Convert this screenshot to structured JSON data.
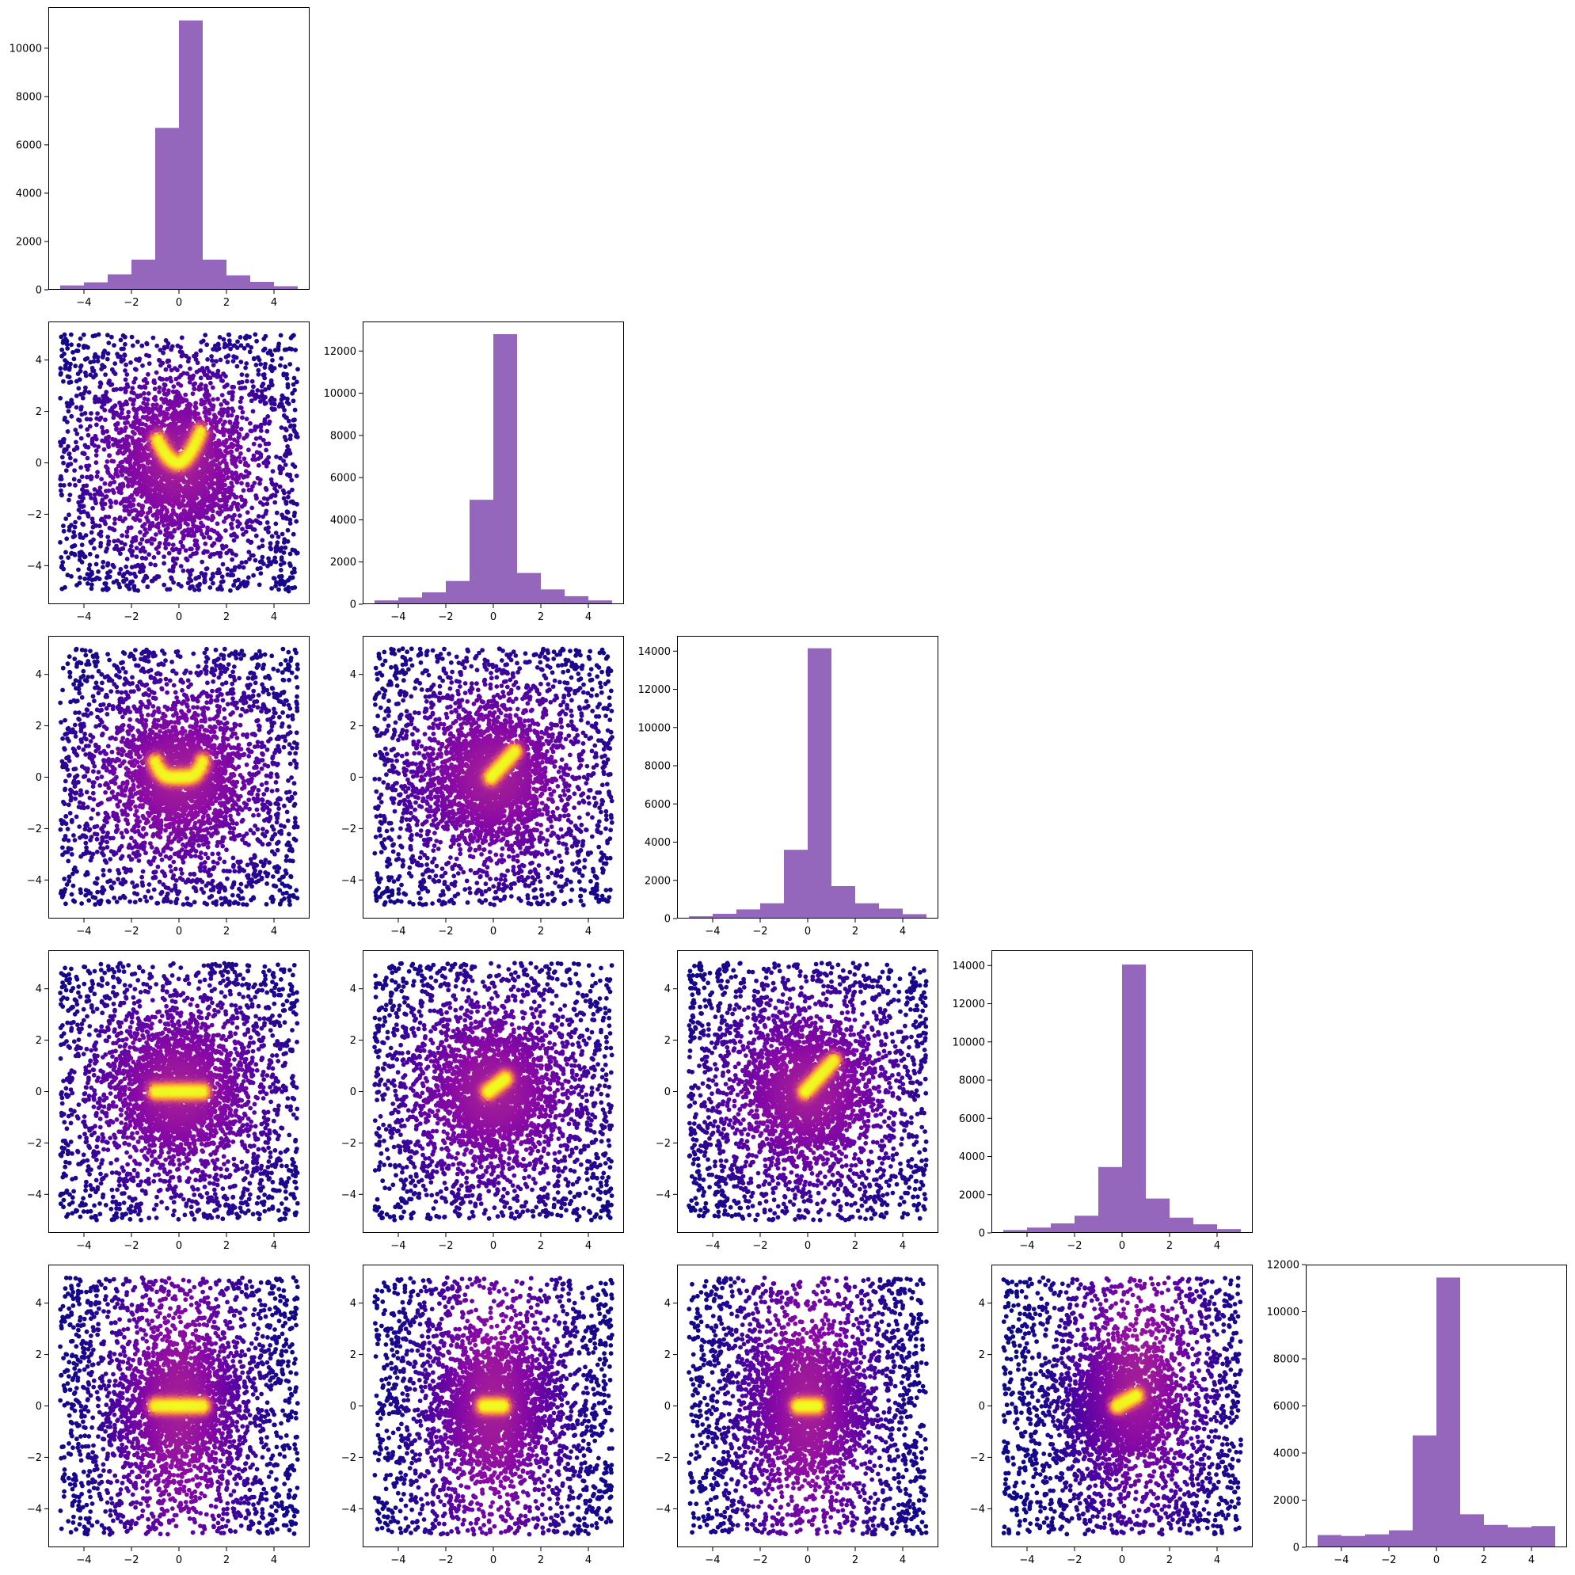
{
  "colors": {
    "hist_fill": "#9467bd",
    "scatter_colormap": "plasma",
    "background": "#ffffff",
    "axes": "#000000"
  },
  "layout_grid": {
    "rows": 5,
    "cols": 5,
    "lower_triangle": true
  },
  "chart_data": [
    {
      "id": "hist-0",
      "type": "bar",
      "row": 0,
      "col": 0,
      "bin_edges": [
        -5,
        -4,
        -3,
        -2,
        -1,
        0,
        1,
        2,
        3,
        4,
        5
      ],
      "values": [
        180,
        310,
        640,
        1250,
        6700,
        11150,
        1250,
        600,
        330,
        150
      ],
      "xlim": [
        -5.5,
        5.5
      ],
      "ylim": [
        0,
        11700
      ],
      "xticks": [
        -4,
        -2,
        0,
        2,
        4
      ],
      "yticks": [
        0,
        2000,
        4000,
        6000,
        8000,
        10000
      ]
    },
    {
      "id": "scatter-1-0",
      "type": "scatter",
      "row": 1,
      "col": 0,
      "points": 5000,
      "shape": "v-curve",
      "xlim": [
        -5.5,
        5.5
      ],
      "ylim": [
        -5.5,
        5.5
      ],
      "xticks": [
        -4,
        -2,
        0,
        2,
        4
      ],
      "yticks": [
        -4,
        -2,
        0,
        2,
        4
      ]
    },
    {
      "id": "hist-1",
      "type": "bar",
      "row": 1,
      "col": 1,
      "bin_edges": [
        -5,
        -4,
        -3,
        -2,
        -1,
        0,
        1,
        2,
        3,
        4,
        5
      ],
      "values": [
        180,
        320,
        560,
        1100,
        4950,
        12800,
        1480,
        700,
        380,
        180
      ],
      "xlim": [
        -5.5,
        5.5
      ],
      "ylim": [
        0,
        13400
      ],
      "xticks": [
        -4,
        -2,
        0,
        2,
        4
      ],
      "yticks": [
        0,
        2000,
        4000,
        6000,
        8000,
        10000,
        12000
      ]
    },
    {
      "id": "scatter-2-0",
      "type": "scatter",
      "row": 2,
      "col": 0,
      "points": 5000,
      "shape": "u-curve",
      "xlim": [
        -5.5,
        5.5
      ],
      "ylim": [
        -5.5,
        5.5
      ],
      "xticks": [
        -4,
        -2,
        0,
        2,
        4
      ],
      "yticks": [
        -4,
        -2,
        0,
        2,
        4
      ]
    },
    {
      "id": "scatter-2-1",
      "type": "scatter",
      "row": 2,
      "col": 1,
      "points": 5000,
      "shape": "right-arc",
      "xlim": [
        -5.5,
        5.5
      ],
      "ylim": [
        -5.5,
        5.5
      ],
      "xticks": [
        -4,
        -2,
        0,
        2,
        4
      ],
      "yticks": [
        -4,
        -2,
        0,
        2,
        4
      ]
    },
    {
      "id": "hist-2",
      "type": "bar",
      "row": 2,
      "col": 2,
      "bin_edges": [
        -5,
        -4,
        -3,
        -2,
        -1,
        0,
        1,
        2,
        3,
        4,
        5
      ],
      "values": [
        120,
        250,
        480,
        800,
        3600,
        14150,
        1700,
        800,
        520,
        230
      ],
      "xlim": [
        -5.5,
        5.5
      ],
      "ylim": [
        0,
        14800
      ],
      "xticks": [
        -4,
        -2,
        0,
        2,
        4
      ],
      "yticks": [
        0,
        2000,
        4000,
        6000,
        8000,
        10000,
        12000,
        14000
      ]
    },
    {
      "id": "scatter-3-0",
      "type": "scatter",
      "row": 3,
      "col": 0,
      "points": 5000,
      "shape": "flat-bar",
      "xlim": [
        -5.5,
        5.5
      ],
      "ylim": [
        -5.5,
        5.5
      ],
      "xticks": [
        -4,
        -2,
        0,
        2,
        4
      ],
      "yticks": [
        -4,
        -2,
        0,
        2,
        4
      ]
    },
    {
      "id": "scatter-3-1",
      "type": "scatter",
      "row": 3,
      "col": 1,
      "points": 5000,
      "shape": "short-arc",
      "xlim": [
        -5.5,
        5.5
      ],
      "ylim": [
        -5.5,
        5.5
      ],
      "xticks": [
        -4,
        -2,
        0,
        2,
        4
      ],
      "yticks": [
        -4,
        -2,
        0,
        2,
        4
      ]
    },
    {
      "id": "scatter-3-2",
      "type": "scatter",
      "row": 3,
      "col": 2,
      "points": 5000,
      "shape": "diagonal",
      "xlim": [
        -5.5,
        5.5
      ],
      "ylim": [
        -5.5,
        5.5
      ],
      "xticks": [
        -4,
        -2,
        0,
        2,
        4
      ],
      "yticks": [
        -4,
        -2,
        0,
        2,
        4
      ]
    },
    {
      "id": "hist-3",
      "type": "bar",
      "row": 3,
      "col": 3,
      "bin_edges": [
        -5,
        -4,
        -3,
        -2,
        -1,
        0,
        1,
        2,
        3,
        4,
        5
      ],
      "values": [
        150,
        280,
        500,
        900,
        3450,
        14050,
        1800,
        800,
        450,
        200
      ],
      "xlim": [
        -5.5,
        5.5
      ],
      "ylim": [
        0,
        14800
      ],
      "xticks": [
        -4,
        -2,
        0,
        2,
        4
      ],
      "yticks": [
        0,
        2000,
        4000,
        6000,
        8000,
        10000,
        12000,
        14000
      ]
    },
    {
      "id": "scatter-4-0",
      "type": "scatter",
      "row": 4,
      "col": 0,
      "points": 5000,
      "shape": "flat-bar-vertical",
      "xlim": [
        -5.5,
        5.5
      ],
      "ylim": [
        -5.5,
        5.5
      ],
      "xticks": [
        -4,
        -2,
        0,
        2,
        4
      ],
      "yticks": [
        -4,
        -2,
        0,
        2,
        4
      ]
    },
    {
      "id": "scatter-4-1",
      "type": "scatter",
      "row": 4,
      "col": 1,
      "points": 5000,
      "shape": "blob-vertical",
      "xlim": [
        -5.5,
        5.5
      ],
      "ylim": [
        -5.5,
        5.5
      ],
      "xticks": [
        -4,
        -2,
        0,
        2,
        4
      ],
      "yticks": [
        -4,
        -2,
        0,
        2,
        4
      ]
    },
    {
      "id": "scatter-4-2",
      "type": "scatter",
      "row": 4,
      "col": 2,
      "points": 5000,
      "shape": "blob-vertical",
      "xlim": [
        -5.5,
        5.5
      ],
      "ylim": [
        -5.5,
        5.5
      ],
      "xticks": [
        -4,
        -2,
        0,
        2,
        4
      ],
      "yticks": [
        -4,
        -2,
        0,
        2,
        4
      ]
    },
    {
      "id": "scatter-4-3",
      "type": "scatter",
      "row": 4,
      "col": 3,
      "points": 5000,
      "shape": "v-fan",
      "xlim": [
        -5.5,
        5.5
      ],
      "ylim": [
        -5.5,
        5.5
      ],
      "xticks": [
        -4,
        -2,
        0,
        2,
        4
      ],
      "yticks": [
        -4,
        -2,
        0,
        2,
        4
      ]
    },
    {
      "id": "hist-4",
      "type": "bar",
      "row": 4,
      "col": 4,
      "bin_edges": [
        -5,
        -4,
        -3,
        -2,
        -1,
        0,
        1,
        2,
        3,
        4,
        5
      ],
      "values": [
        520,
        480,
        550,
        720,
        4750,
        11450,
        1400,
        950,
        850,
        900
      ],
      "xlim": [
        -5.5,
        5.5
      ],
      "ylim": [
        0,
        12000
      ],
      "xticks": [
        -4,
        -2,
        0,
        2,
        4
      ],
      "yticks": [
        0,
        2000,
        4000,
        6000,
        8000,
        10000,
        12000
      ]
    }
  ]
}
